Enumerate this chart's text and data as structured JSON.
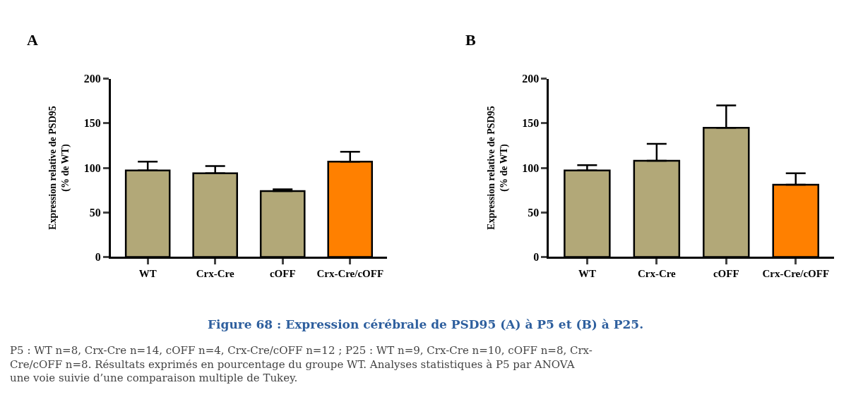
{
  "chart_data": [
    {
      "type": "bar",
      "title": "A",
      "ylabel": "Expression relative de PSD95\n(% de WT)",
      "categories": [
        "WT",
        "Crx-Cre",
        "cOFF",
        "Crx-Cre/cOFF"
      ],
      "values": [
        97,
        94,
        74,
        107
      ],
      "errors": [
        [
          97,
          107
        ],
        [
          94,
          102
        ],
        [
          74,
          76
        ],
        [
          107,
          118
        ]
      ],
      "colors": [
        "#b2a878",
        "#b2a878",
        "#b2a878",
        "#ff8000"
      ],
      "ylim": [
        0,
        200
      ],
      "yticks": [
        0,
        50,
        100,
        150,
        200
      ],
      "annotations": [
        "Figure 68 : Expression cérébrale de PSD95 (A) à P5 et (B) à P25.",
        "P5 : WT n=8, Crx-Cre n=14, cOFF n=4, Crx-Cre/cOFF n=12 ; P25 : WT n=9, Crx-Cre n=10, cOFF n=8, Crx-Cre/cOFF n=8. Résultats exprimés en pourcentage du groupe WT. Analyses statistiques à P5 par ANOVA une voie suivie d’une comparaison multiple de Tukey."
      ]
    },
    {
      "type": "bar",
      "title": "B",
      "ylabel": "Expression relative de PSD95\n(% de WT)",
      "categories": [
        "WT",
        "Crx-Cre",
        "cOFF",
        "Crx-Cre/cOFF"
      ],
      "values": [
        97,
        108,
        145,
        81
      ],
      "errors": [
        [
          97,
          103
        ],
        [
          108,
          127
        ],
        [
          145,
          170
        ],
        [
          81,
          94
        ]
      ],
      "colors": [
        "#b2a878",
        "#b2a878",
        "#b2a878",
        "#ff8000"
      ],
      "ylim": [
        0,
        200
      ],
      "yticks": [
        0,
        50,
        100,
        150,
        200
      ]
    }
  ]
}
